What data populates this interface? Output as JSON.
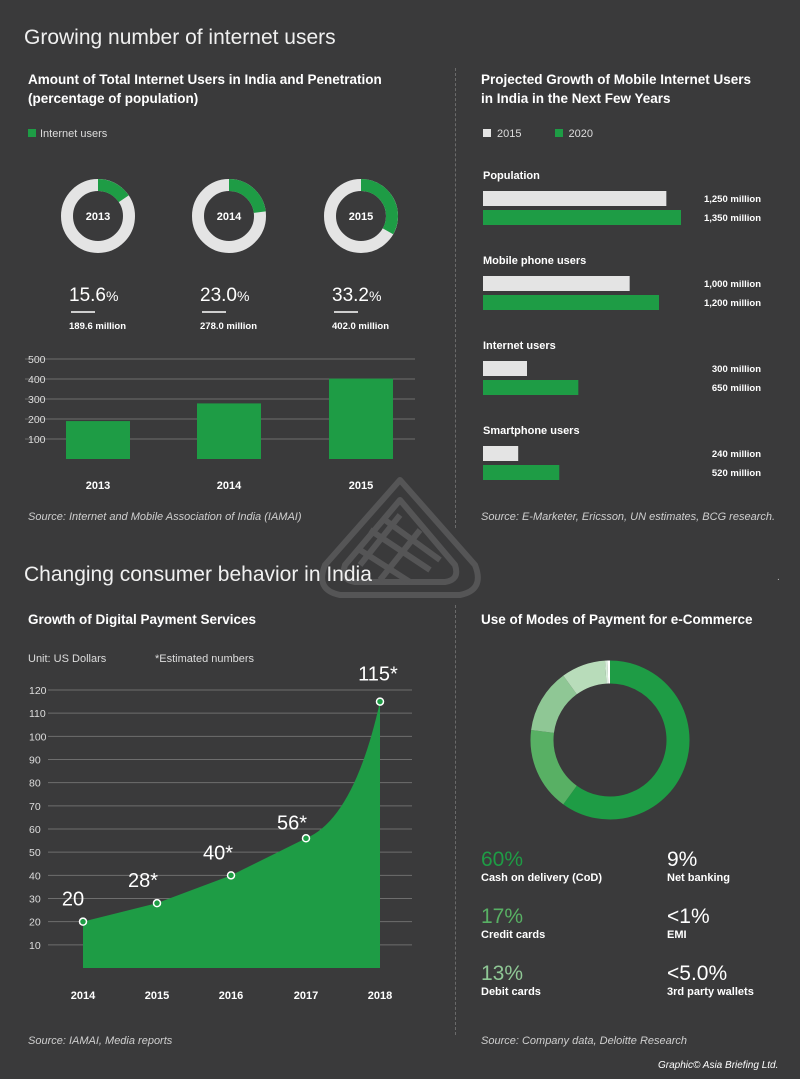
{
  "section1_title": "Growing number of internet users",
  "section2_title": "Changing consumer behavior in India",
  "colors": {
    "green": "#1e9c45",
    "light": "#e4e4e4",
    "ring_bg": "#e4e4e4",
    "bg": "#3a3a3b"
  },
  "footer_credit": "Graphic© Asia Briefing Ltd.",
  "internet_users": {
    "title_line1": "Amount of Total Internet Users in India and Penetration",
    "title_line2": "(percentage of population)",
    "legend": "Internet users",
    "donuts": [
      {
        "year": "2013",
        "pct": "15.6",
        "users": "189.6 million"
      },
      {
        "year": "2014",
        "pct": "23.0",
        "users": "278.0 million"
      },
      {
        "year": "2015",
        "pct": "33.2",
        "users": "402.0 million"
      }
    ],
    "pct_sign": "%",
    "source": "Source: Internet and Mobile Association of India (IAMAI)"
  },
  "projected": {
    "title_line1": "Projected Growth of Mobile Internet Users",
    "title_line2": "in India in the Next Few Years",
    "legend_2015": "2015",
    "legend_2020": "2020",
    "source": "Source: E-Marketer, Ericsson, UN  estimates, BCG research."
  },
  "digital_payments": {
    "title": "Growth of Digital Payment Services",
    "unit": "Unit: US Dollars",
    "note": "*Estimated numbers",
    "source": "Source: IAMAI, Media reports"
  },
  "modes": {
    "title": "Use of Modes of Payment for e-Commerce",
    "source": "Source: Company data, Deloitte Research",
    "items": [
      {
        "pct": "60%",
        "label": "Cash on delivery (CoD)",
        "color": "#1e9c45"
      },
      {
        "pct": "9%",
        "label": "Net banking",
        "color": "#ffffff"
      },
      {
        "pct": "17%",
        "label": "Credit cards",
        "color": "#58b064"
      },
      {
        "pct": "<1%",
        "label": "EMI",
        "color": "#ffffff"
      },
      {
        "pct": "13%",
        "label": "Debit cards",
        "color": "#8fc795"
      },
      {
        "pct": "<5.0%",
        "label": "3rd party wallets",
        "color": "#ffffff"
      }
    ]
  },
  "chart_data": [
    {
      "type": "pie",
      "title": "Amount of Total Internet Users in India and Penetration (percentage of population)",
      "categories": [
        "2013",
        "2014",
        "2015"
      ],
      "values": [
        15.6,
        23.0,
        33.2
      ],
      "unit": "%"
    },
    {
      "type": "bar",
      "categories": [
        "2013",
        "2014",
        "2015"
      ],
      "values": [
        189.6,
        278.0,
        402.0
      ],
      "yticks": [
        100,
        200,
        300,
        400,
        500
      ],
      "ylim": [
        0,
        500
      ],
      "grid": true
    },
    {
      "type": "bar",
      "title": "Projected Growth of Mobile Internet Users in India in the Next Few Years",
      "orientation": "horizontal",
      "categories": [
        "Population",
        "Mobile phone users",
        "Internet users",
        "Smartphone users"
      ],
      "series": [
        {
          "name": "2015",
          "values": [
            1250,
            1000,
            300,
            240
          ],
          "labels": [
            "1,250 million",
            "1,000 million",
            "300 million",
            "240 million"
          ],
          "color": "#e4e4e4"
        },
        {
          "name": "2020",
          "values": [
            1350,
            1200,
            650,
            520
          ],
          "labels": [
            "1,350 million",
            "1,200 million",
            "650 million",
            "520 million"
          ],
          "color": "#1e9c45"
        }
      ],
      "xlim": [
        0,
        1350
      ]
    },
    {
      "type": "area",
      "title": "Growth of Digital Payment Services",
      "x": [
        "2014",
        "2015",
        "2016",
        "2017",
        "2018"
      ],
      "values": [
        20,
        28,
        40,
        56,
        115
      ],
      "point_labels": [
        "20",
        "28*",
        "40*",
        "56*",
        "115*"
      ],
      "yticks": [
        10,
        20,
        30,
        40,
        50,
        60,
        70,
        80,
        90,
        100,
        110,
        120
      ],
      "ylim": [
        0,
        120
      ],
      "grid": true
    },
    {
      "type": "pie",
      "title": "Use of Modes of Payment for e-Commerce",
      "categories": [
        "Cash on delivery (CoD)",
        "Credit cards",
        "Debit cards",
        "Net banking",
        "3rd party wallets",
        "EMI"
      ],
      "values": [
        60,
        17,
        13,
        9,
        0.5,
        0.5
      ],
      "colors": [
        "#1e9c45",
        "#58b064",
        "#8fc795",
        "#b8dcba",
        "#d9eedb",
        "#ffffff"
      ]
    }
  ]
}
